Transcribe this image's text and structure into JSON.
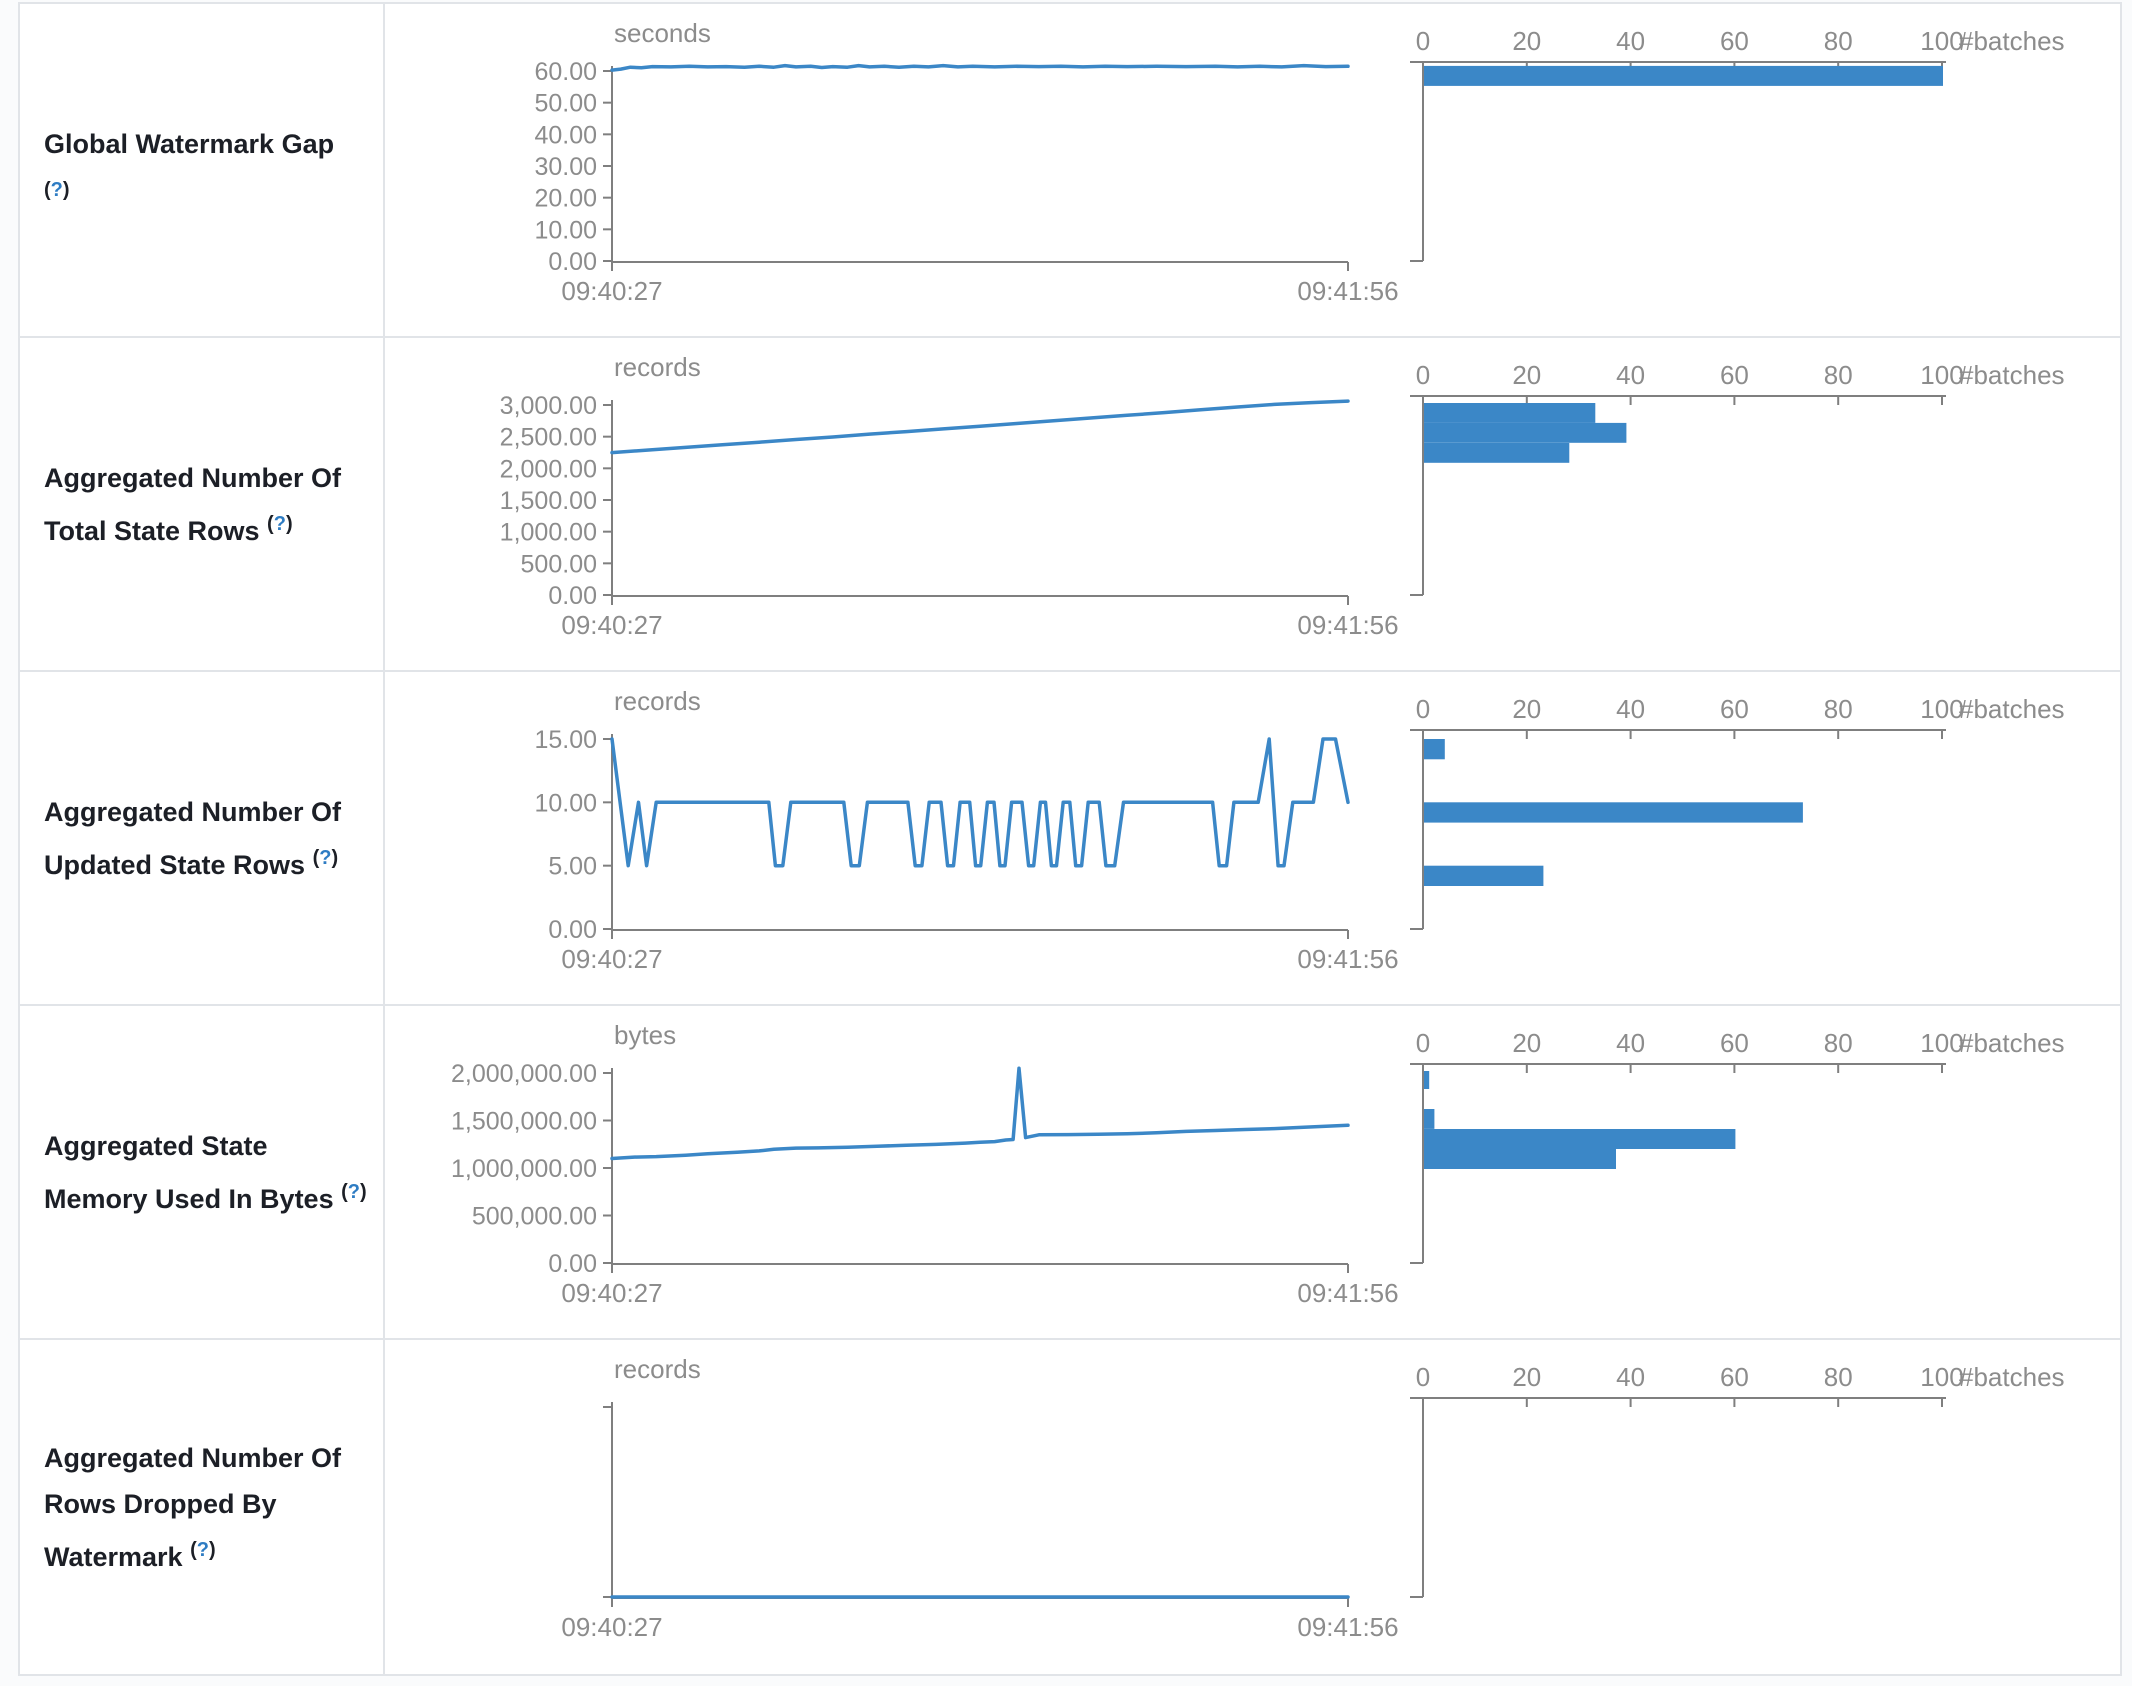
{
  "ui": {
    "help_open": "(",
    "help_q": "?",
    "help_close": ")"
  },
  "colors": {
    "accent_blue": "#3b87c7",
    "axis_gray": "#7f7f7f",
    "tick_text_gray": "#8c8c8c",
    "label_text": "#1c1f26",
    "help_link_blue": "#2e7cc3",
    "table_border": "#e1e4e8"
  },
  "axis": {
    "x_start_label": "09:40:27",
    "x_end_label": "09:41:56",
    "batches_axis_label": "#batches",
    "batch_ticks": [
      0,
      20,
      40,
      60,
      80,
      100
    ]
  },
  "rows": [
    {
      "label": "Global Watermark Gap"
    },
    {
      "label": "Aggregated Number Of Total State Rows"
    },
    {
      "label": "Aggregated Number Of Updated State Rows"
    },
    {
      "label": "Aggregated State Memory Used In Bytes"
    },
    {
      "label": "Aggregated Number Of Rows Dropped By Watermark"
    }
  ],
  "chart_data": [
    {
      "type": "line",
      "title": "Global Watermark Gap",
      "unit": "seconds",
      "x_range": [
        "09:40:27",
        "09:41:56"
      ],
      "y_axis_max": 60,
      "y_ticks": [
        {
          "v": 0,
          "label": "0.00"
        },
        {
          "v": 10,
          "label": "10.00"
        },
        {
          "v": 20,
          "label": "20.00"
        },
        {
          "v": 30,
          "label": "30.00"
        },
        {
          "v": 40,
          "label": "40.00"
        },
        {
          "v": 50,
          "label": "50.00"
        },
        {
          "v": 60,
          "label": "60.00"
        }
      ],
      "line": [
        [
          0,
          60.3
        ],
        [
          0.012,
          60.6
        ],
        [
          0.025,
          61.2
        ],
        [
          0.04,
          61.0
        ],
        [
          0.055,
          61.4
        ],
        [
          0.08,
          61.3
        ],
        [
          0.105,
          61.5
        ],
        [
          0.13,
          61.3
        ],
        [
          0.155,
          61.4
        ],
        [
          0.18,
          61.2
        ],
        [
          0.2,
          61.5
        ],
        [
          0.22,
          61.2
        ],
        [
          0.235,
          61.7
        ],
        [
          0.25,
          61.3
        ],
        [
          0.27,
          61.5
        ],
        [
          0.285,
          61.1
        ],
        [
          0.3,
          61.4
        ],
        [
          0.32,
          61.2
        ],
        [
          0.335,
          61.7
        ],
        [
          0.35,
          61.3
        ],
        [
          0.37,
          61.5
        ],
        [
          0.39,
          61.2
        ],
        [
          0.41,
          61.5
        ],
        [
          0.43,
          61.3
        ],
        [
          0.45,
          61.7
        ],
        [
          0.47,
          61.3
        ],
        [
          0.49,
          61.5
        ],
        [
          0.52,
          61.3
        ],
        [
          0.55,
          61.5
        ],
        [
          0.58,
          61.4
        ],
        [
          0.61,
          61.5
        ],
        [
          0.64,
          61.3
        ],
        [
          0.67,
          61.5
        ],
        [
          0.7,
          61.4
        ],
        [
          0.74,
          61.5
        ],
        [
          0.78,
          61.4
        ],
        [
          0.82,
          61.5
        ],
        [
          0.85,
          61.3
        ],
        [
          0.88,
          61.5
        ],
        [
          0.91,
          61.3
        ],
        [
          0.94,
          61.7
        ],
        [
          0.97,
          61.4
        ],
        [
          1,
          61.5
        ]
      ],
      "histogram_bins": [
        {
          "lo": 55.3,
          "hi": 61.6,
          "count": 100
        }
      ]
    },
    {
      "type": "line",
      "title": "Aggregated Number Of Total State Rows",
      "unit": "records",
      "x_range": [
        "09:40:27",
        "09:41:56"
      ],
      "y_axis_max": 3000,
      "y_ticks": [
        {
          "v": 0,
          "label": "0.00"
        },
        {
          "v": 500,
          "label": "500.00"
        },
        {
          "v": 1000,
          "label": "1,000.00"
        },
        {
          "v": 1500,
          "label": "1,500.00"
        },
        {
          "v": 2000,
          "label": "2,000.00"
        },
        {
          "v": 2500,
          "label": "2,500.00"
        },
        {
          "v": 3000,
          "label": "3,000.00"
        }
      ],
      "line": [
        [
          0,
          2248
        ],
        [
          0.05,
          2290
        ],
        [
          0.1,
          2330
        ],
        [
          0.15,
          2372
        ],
        [
          0.2,
          2412
        ],
        [
          0.25,
          2455
        ],
        [
          0.3,
          2495
        ],
        [
          0.35,
          2540
        ],
        [
          0.4,
          2580
        ],
        [
          0.45,
          2622
        ],
        [
          0.5,
          2665
        ],
        [
          0.55,
          2708
        ],
        [
          0.6,
          2750
        ],
        [
          0.65,
          2795
        ],
        [
          0.7,
          2838
        ],
        [
          0.75,
          2880
        ],
        [
          0.8,
          2925
        ],
        [
          0.85,
          2968
        ],
        [
          0.9,
          3010
        ],
        [
          0.95,
          3038
        ],
        [
          1,
          3062
        ]
      ],
      "histogram_bins": [
        {
          "lo": 2717,
          "hi": 3032,
          "count": 33
        },
        {
          "lo": 2402,
          "hi": 2717,
          "count": 39
        },
        {
          "lo": 2087,
          "hi": 2402,
          "count": 28
        }
      ]
    },
    {
      "type": "line",
      "title": "Aggregated Number Of Updated State Rows",
      "unit": "records",
      "x_range": [
        "09:40:27",
        "09:41:56"
      ],
      "y_axis_max": 15,
      "y_ticks": [
        {
          "v": 0,
          "label": "0.00"
        },
        {
          "v": 5,
          "label": "5.00"
        },
        {
          "v": 10,
          "label": "10.00"
        },
        {
          "v": 15,
          "label": "15.00"
        }
      ],
      "line": [
        [
          0,
          15
        ],
        [
          0.022,
          5
        ],
        [
          0.036,
          10
        ],
        [
          0.047,
          5
        ],
        [
          0.06,
          10
        ],
        [
          0.213,
          10
        ],
        [
          0.222,
          5
        ],
        [
          0.232,
          5
        ],
        [
          0.243,
          10
        ],
        [
          0.315,
          10
        ],
        [
          0.325,
          5
        ],
        [
          0.336,
          5
        ],
        [
          0.347,
          10
        ],
        [
          0.402,
          10
        ],
        [
          0.412,
          5
        ],
        [
          0.421,
          5
        ],
        [
          0.431,
          10
        ],
        [
          0.447,
          10
        ],
        [
          0.456,
          5
        ],
        [
          0.464,
          5
        ],
        [
          0.473,
          10
        ],
        [
          0.486,
          10
        ],
        [
          0.494,
          5
        ],
        [
          0.501,
          5
        ],
        [
          0.51,
          10
        ],
        [
          0.519,
          10
        ],
        [
          0.527,
          5
        ],
        [
          0.534,
          5
        ],
        [
          0.543,
          10
        ],
        [
          0.557,
          10
        ],
        [
          0.566,
          5
        ],
        [
          0.573,
          5
        ],
        [
          0.582,
          10
        ],
        [
          0.589,
          10
        ],
        [
          0.597,
          5
        ],
        [
          0.604,
          5
        ],
        [
          0.613,
          10
        ],
        [
          0.622,
          10
        ],
        [
          0.63,
          5
        ],
        [
          0.638,
          5
        ],
        [
          0.647,
          10
        ],
        [
          0.662,
          10
        ],
        [
          0.671,
          5
        ],
        [
          0.683,
          5
        ],
        [
          0.695,
          10
        ],
        [
          0.816,
          10
        ],
        [
          0.825,
          5
        ],
        [
          0.835,
          5
        ],
        [
          0.845,
          10
        ],
        [
          0.878,
          10
        ],
        [
          0.893,
          15
        ],
        [
          0.905,
          5
        ],
        [
          0.913,
          5
        ],
        [
          0.925,
          10
        ],
        [
          0.953,
          10
        ],
        [
          0.966,
          15
        ],
        [
          0.983,
          15
        ],
        [
          1,
          10
        ]
      ],
      "histogram_bins": [
        {
          "lo": 13.4,
          "hi": 15.0,
          "count": 4
        },
        {
          "lo": 8.4,
          "hi": 10.0,
          "count": 73
        },
        {
          "lo": 3.4,
          "hi": 5.0,
          "count": 23
        }
      ]
    },
    {
      "type": "line",
      "title": "Aggregated State Memory Used In Bytes",
      "unit": "bytes",
      "x_range": [
        "09:40:27",
        "09:41:56"
      ],
      "y_axis_max": 2000000,
      "y_ticks": [
        {
          "v": 0,
          "label": "0.00"
        },
        {
          "v": 500000,
          "label": "500,000.00"
        },
        {
          "v": 1000000,
          "label": "1,000,000.00"
        },
        {
          "v": 1500000,
          "label": "1,500,000.00"
        },
        {
          "v": 2000000,
          "label": "2,000,000.00"
        }
      ],
      "line": [
        [
          0,
          1100000
        ],
        [
          0.03,
          1115000
        ],
        [
          0.06,
          1120000
        ],
        [
          0.1,
          1135000
        ],
        [
          0.13,
          1150000
        ],
        [
          0.17,
          1165000
        ],
        [
          0.2,
          1180000
        ],
        [
          0.22,
          1198000
        ],
        [
          0.25,
          1210000
        ],
        [
          0.28,
          1212000
        ],
        [
          0.32,
          1218000
        ],
        [
          0.36,
          1228000
        ],
        [
          0.4,
          1240000
        ],
        [
          0.44,
          1248000
        ],
        [
          0.48,
          1262000
        ],
        [
          0.5,
          1270000
        ],
        [
          0.52,
          1278000
        ],
        [
          0.535,
          1295000
        ],
        [
          0.545,
          1300000
        ],
        [
          0.553,
          2050000
        ],
        [
          0.562,
          1320000
        ],
        [
          0.58,
          1350000
        ],
        [
          0.62,
          1352000
        ],
        [
          0.66,
          1355000
        ],
        [
          0.7,
          1360000
        ],
        [
          0.74,
          1370000
        ],
        [
          0.78,
          1385000
        ],
        [
          0.82,
          1395000
        ],
        [
          0.86,
          1405000
        ],
        [
          0.9,
          1415000
        ],
        [
          0.94,
          1430000
        ],
        [
          1,
          1450000
        ]
      ],
      "histogram_bins": [
        {
          "lo": 1832000,
          "hi": 2021000,
          "count": 1
        },
        {
          "lo": 1411000,
          "hi": 1621000,
          "count": 2
        },
        {
          "lo": 1200000,
          "hi": 1411000,
          "count": 60
        },
        {
          "lo": 989000,
          "hi": 1200000,
          "count": 37
        }
      ]
    },
    {
      "type": "line",
      "title": "Aggregated Number Of Rows Dropped By Watermark",
      "unit": "records",
      "x_range": [
        "09:40:27",
        "09:41:56"
      ],
      "y_axis_max": null,
      "y_ticks": [],
      "line": [
        [
          0,
          0
        ],
        [
          1,
          0
        ]
      ],
      "histogram_bins": []
    }
  ]
}
